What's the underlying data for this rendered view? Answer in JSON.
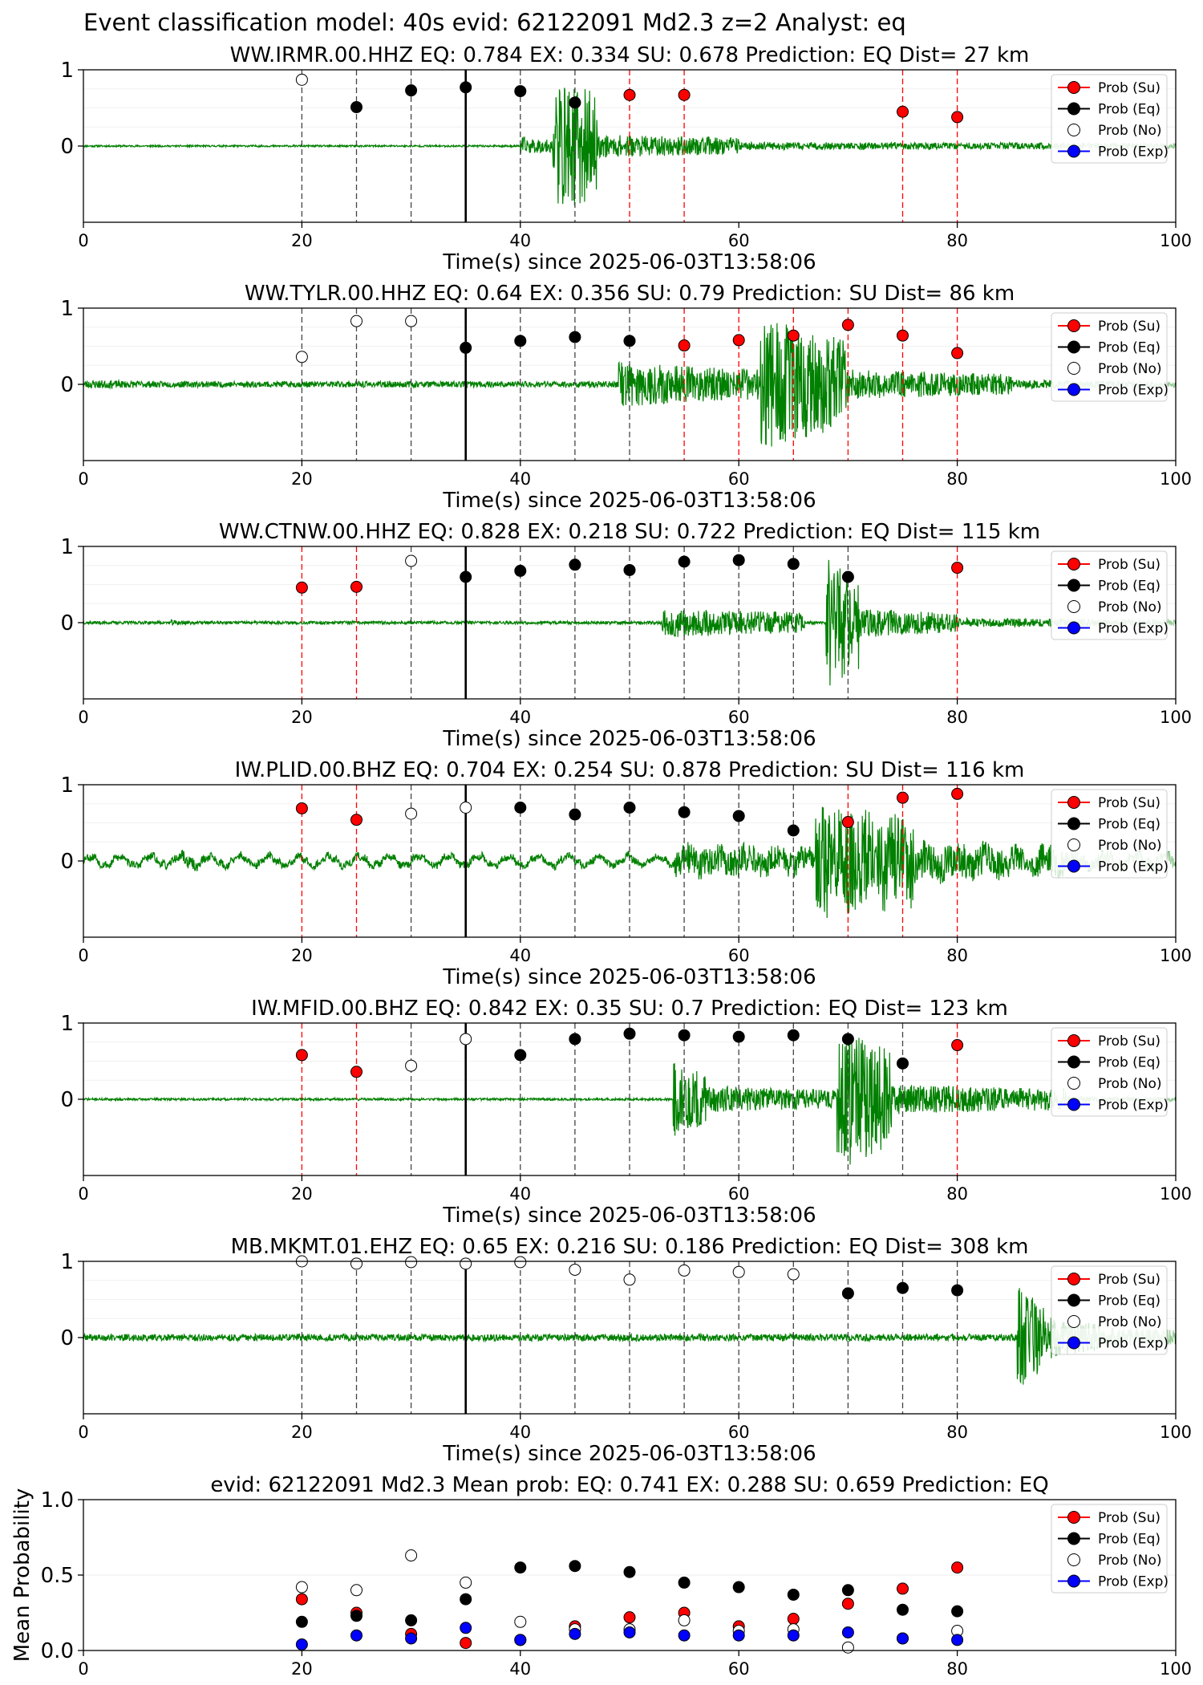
{
  "figure": {
    "suptitle": "Event classification model: 40s evid: 62122091 Md2.3 z=2 Analyst: eq"
  },
  "legend_labels": [
    "Prob (Su)",
    "Prob (Eq)",
    "Prob (No)",
    "Prob (Exp)"
  ],
  "colors": {
    "su": "#ff0000",
    "eq": "#000000",
    "no": "#ffffff",
    "exp": "#0000ff",
    "trace": "#008000",
    "trace_faint": "#a8d8a8"
  },
  "chart_data": [
    {
      "type": "scatter",
      "title": "WW.IRMR.00.HHZ   EQ: 0.784  EX: 0.334  SU: 0.678   Prediction: EQ    Dist= 27 km",
      "xlabel": "Time(s) since 2025-06-03T13:58:06",
      "xlim": [
        0,
        100
      ],
      "ylim": [
        -1,
        1
      ],
      "xticks": [
        0,
        20,
        40,
        60,
        80,
        100
      ],
      "yticks": [
        0,
        1
      ],
      "window_end_line": 35,
      "points": [
        [
          20,
          0.87,
          "No"
        ],
        [
          25,
          0.51,
          "Eq"
        ],
        [
          30,
          0.73,
          "Eq"
        ],
        [
          35,
          0.77,
          "Eq"
        ],
        [
          40,
          0.72,
          "Eq"
        ],
        [
          45,
          0.57,
          "Eq"
        ],
        [
          50,
          0.67,
          "Su"
        ],
        [
          55,
          0.67,
          "Su"
        ],
        [
          75,
          0.45,
          "Su"
        ],
        [
          80,
          0.38,
          "Su"
        ]
      ],
      "waveform": {
        "noise": 0.012,
        "bursts": [
          [
            40,
            44,
            0.12,
            0.6
          ],
          [
            43,
            47,
            0.85,
            2.2
          ],
          [
            47,
            60,
            0.15,
            1.2
          ],
          [
            60,
            100,
            0.05,
            1.5
          ]
        ],
        "seed": 11
      }
    },
    {
      "type": "scatter",
      "title": "WW.TYLR.00.HHZ   EQ: 0.64  EX: 0.356  SU: 0.79   Prediction: SU    Dist= 86 km",
      "xlabel": "Time(s) since 2025-06-03T13:58:06",
      "xlim": [
        0,
        100
      ],
      "ylim": [
        -1,
        1
      ],
      "xticks": [
        0,
        20,
        40,
        60,
        80,
        100
      ],
      "yticks": [
        0,
        1
      ],
      "window_end_line": 35,
      "points": [
        [
          20,
          0.36,
          "No"
        ],
        [
          25,
          0.83,
          "No"
        ],
        [
          30,
          0.83,
          "No"
        ],
        [
          35,
          0.48,
          "Eq"
        ],
        [
          40,
          0.57,
          "Eq"
        ],
        [
          45,
          0.62,
          "Eq"
        ],
        [
          50,
          0.57,
          "Eq"
        ],
        [
          55,
          0.51,
          "Su"
        ],
        [
          60,
          0.58,
          "Su"
        ],
        [
          65,
          0.64,
          "Su"
        ],
        [
          70,
          0.78,
          "Su"
        ],
        [
          75,
          0.64,
          "Su"
        ],
        [
          80,
          0.41,
          "Su"
        ]
      ],
      "waveform": {
        "noise": 0.04,
        "bursts": [
          [
            0,
            10,
            0.06,
            0.6
          ],
          [
            49,
            62,
            0.3,
            0.8
          ],
          [
            62,
            70,
            0.9,
            0.8
          ],
          [
            70,
            85,
            0.2,
            0.9
          ],
          [
            85,
            100,
            0.06,
            1.2
          ]
        ],
        "seed": 23
      }
    },
    {
      "type": "scatter",
      "title": "WW.CTNW.00.HHZ   EQ: 0.828  EX: 0.218  SU: 0.722   Prediction: EQ    Dist= 115 km",
      "xlabel": "Time(s) since 2025-06-03T13:58:06",
      "xlim": [
        0,
        100
      ],
      "ylim": [
        -1,
        1
      ],
      "xticks": [
        0,
        20,
        40,
        60,
        80,
        100
      ],
      "yticks": [
        0,
        1
      ],
      "window_end_line": 35,
      "points": [
        [
          20,
          0.46,
          "Su"
        ],
        [
          25,
          0.47,
          "Su"
        ],
        [
          30,
          0.81,
          "No"
        ],
        [
          35,
          0.6,
          "Eq"
        ],
        [
          40,
          0.68,
          "Eq"
        ],
        [
          45,
          0.76,
          "Eq"
        ],
        [
          50,
          0.69,
          "Eq"
        ],
        [
          55,
          0.8,
          "Eq"
        ],
        [
          60,
          0.82,
          "Eq"
        ],
        [
          65,
          0.77,
          "Eq"
        ],
        [
          70,
          0.6,
          "Eq"
        ],
        [
          80,
          0.72,
          "Su"
        ]
      ],
      "waveform": {
        "noise": 0.02,
        "bursts": [
          [
            8,
            10,
            0.04,
            0.5
          ],
          [
            53,
            66,
            0.2,
            0.9
          ],
          [
            68,
            71,
            0.9,
            0.9
          ],
          [
            71,
            80,
            0.2,
            0.8
          ],
          [
            80,
            100,
            0.06,
            1.0
          ]
        ],
        "seed": 37
      }
    },
    {
      "type": "scatter",
      "title": "IW.PLID.00.BHZ   EQ: 0.704  EX: 0.254  SU: 0.878   Prediction: SU    Dist= 116 km",
      "xlabel": "Time(s) since 2025-06-03T13:58:06",
      "xlim": [
        0,
        100
      ],
      "ylim": [
        -1,
        1
      ],
      "xticks": [
        0,
        20,
        40,
        60,
        80,
        100
      ],
      "yticks": [
        0,
        1
      ],
      "window_end_line": 35,
      "points": [
        [
          20,
          0.69,
          "Su"
        ],
        [
          25,
          0.54,
          "Su"
        ],
        [
          30,
          0.62,
          "No"
        ],
        [
          35,
          0.7,
          "No"
        ],
        [
          40,
          0.7,
          "Eq"
        ],
        [
          45,
          0.61,
          "Eq"
        ],
        [
          50,
          0.7,
          "Eq"
        ],
        [
          55,
          0.64,
          "Eq"
        ],
        [
          60,
          0.59,
          "Eq"
        ],
        [
          65,
          0.4,
          "Eq"
        ],
        [
          70,
          0.51,
          "Su"
        ],
        [
          75,
          0.83,
          "Su"
        ],
        [
          80,
          0.88,
          "Su"
        ]
      ],
      "waveform": {
        "noise": 0.05,
        "bursts": [
          [
            9,
            11,
            0.1,
            0.5
          ],
          [
            54,
            67,
            0.22,
            0.9
          ],
          [
            67,
            76,
            0.8,
            0.9
          ],
          [
            76,
            90,
            0.25,
            1.0
          ],
          [
            90,
            100,
            0.1,
            1.2
          ]
        ],
        "seed": 53,
        "wobble": 0.06
      }
    },
    {
      "type": "scatter",
      "title": "IW.MFID.00.BHZ   EQ: 0.842  EX: 0.35  SU: 0.7   Prediction: EQ    Dist= 123 km",
      "xlabel": "Time(s) since 2025-06-03T13:58:06",
      "xlim": [
        0,
        100
      ],
      "ylim": [
        -1,
        1
      ],
      "xticks": [
        0,
        20,
        40,
        60,
        80,
        100
      ],
      "yticks": [
        0,
        1
      ],
      "window_end_line": 35,
      "points": [
        [
          20,
          0.58,
          "Su"
        ],
        [
          25,
          0.36,
          "Su"
        ],
        [
          30,
          0.44,
          "No"
        ],
        [
          35,
          0.79,
          "No"
        ],
        [
          40,
          0.58,
          "Eq"
        ],
        [
          45,
          0.79,
          "Eq"
        ],
        [
          50,
          0.86,
          "Eq"
        ],
        [
          55,
          0.84,
          "Eq"
        ],
        [
          60,
          0.82,
          "Eq"
        ],
        [
          65,
          0.84,
          "Eq"
        ],
        [
          70,
          0.79,
          "Eq"
        ],
        [
          75,
          0.47,
          "Eq"
        ],
        [
          80,
          0.71,
          "Su"
        ]
      ],
      "waveform": {
        "noise": 0.015,
        "bursts": [
          [
            54,
            57,
            0.5,
            0.8
          ],
          [
            57,
            69,
            0.18,
            0.8
          ],
          [
            69,
            74,
            0.95,
            0.9
          ],
          [
            74,
            90,
            0.2,
            1.0
          ],
          [
            90,
            100,
            0.04,
            1.2
          ]
        ],
        "seed": 71
      }
    },
    {
      "type": "scatter",
      "title": "MB.MKMT.01.EHZ   EQ: 0.65  EX: 0.216  SU: 0.186   Prediction: EQ    Dist= 308 km",
      "xlabel": "Time(s) since 2025-06-03T13:58:06",
      "xlim": [
        0,
        100
      ],
      "ylim": [
        -1,
        1
      ],
      "xticks": [
        0,
        20,
        40,
        60,
        80,
        100
      ],
      "yticks": [
        0,
        1
      ],
      "window_end_line": 35,
      "points": [
        [
          20,
          1.0,
          "No"
        ],
        [
          25,
          0.97,
          "No"
        ],
        [
          30,
          0.99,
          "No"
        ],
        [
          35,
          0.97,
          "No"
        ],
        [
          40,
          0.99,
          "No"
        ],
        [
          45,
          0.89,
          "No"
        ],
        [
          50,
          0.76,
          "No"
        ],
        [
          55,
          0.88,
          "No"
        ],
        [
          60,
          0.86,
          "No"
        ],
        [
          65,
          0.83,
          "No"
        ],
        [
          70,
          0.58,
          "Eq"
        ],
        [
          75,
          0.65,
          "Eq"
        ],
        [
          80,
          0.62,
          "Eq"
        ]
      ],
      "waveform": {
        "noise": 0.045,
        "bursts": [
          [
            85.5,
            88,
            0.75,
            0.5
          ],
          [
            88,
            93,
            0.3,
            0.6
          ],
          [
            93,
            100,
            0.15,
            1.0
          ]
        ],
        "seed": 89
      }
    },
    {
      "type": "scatter",
      "title": "evid: 62122091  Md2.3   Mean prob:   EQ: 0.741  EX: 0.288  SU: 0.659   Prediction: EQ",
      "xlabel": "",
      "ylabel": "Mean Probability",
      "xlim": [
        0,
        100
      ],
      "ylim": [
        0,
        1
      ],
      "xticks": [
        0,
        20,
        40,
        60,
        80,
        100
      ],
      "yticks": [
        0.0,
        0.5,
        1.0
      ],
      "series": [
        {
          "name": "Prob (Su)",
          "key": "su",
          "x": [
            20,
            25,
            30,
            35,
            40,
            45,
            50,
            55,
            60,
            65,
            70,
            75,
            80
          ],
          "values": [
            0.34,
            0.25,
            0.11,
            0.05,
            0.07,
            0.16,
            0.22,
            0.25,
            0.16,
            0.21,
            0.31,
            0.41,
            0.55
          ]
        },
        {
          "name": "Prob (Eq)",
          "key": "eq",
          "x": [
            20,
            25,
            30,
            35,
            40,
            45,
            50,
            55,
            60,
            65,
            70,
            75,
            80
          ],
          "values": [
            0.19,
            0.23,
            0.2,
            0.34,
            0.55,
            0.56,
            0.52,
            0.45,
            0.42,
            0.37,
            0.4,
            0.27,
            0.26
          ]
        },
        {
          "name": "Prob (No)",
          "key": "no",
          "x": [
            20,
            25,
            30,
            35,
            40,
            45,
            50,
            55,
            60,
            65,
            70,
            75,
            80
          ],
          "values": [
            0.42,
            0.4,
            0.63,
            0.45,
            0.19,
            0.14,
            0.14,
            0.2,
            0.13,
            0.14,
            0.02,
            0.08,
            0.13
          ]
        },
        {
          "name": "Prob (Exp)",
          "key": "exp",
          "x": [
            20,
            25,
            30,
            35,
            40,
            45,
            50,
            55,
            60,
            65,
            70,
            75,
            80
          ],
          "values": [
            0.04,
            0.1,
            0.08,
            0.15,
            0.07,
            0.11,
            0.12,
            0.1,
            0.1,
            0.1,
            0.12,
            0.08,
            0.07
          ]
        }
      ]
    }
  ]
}
